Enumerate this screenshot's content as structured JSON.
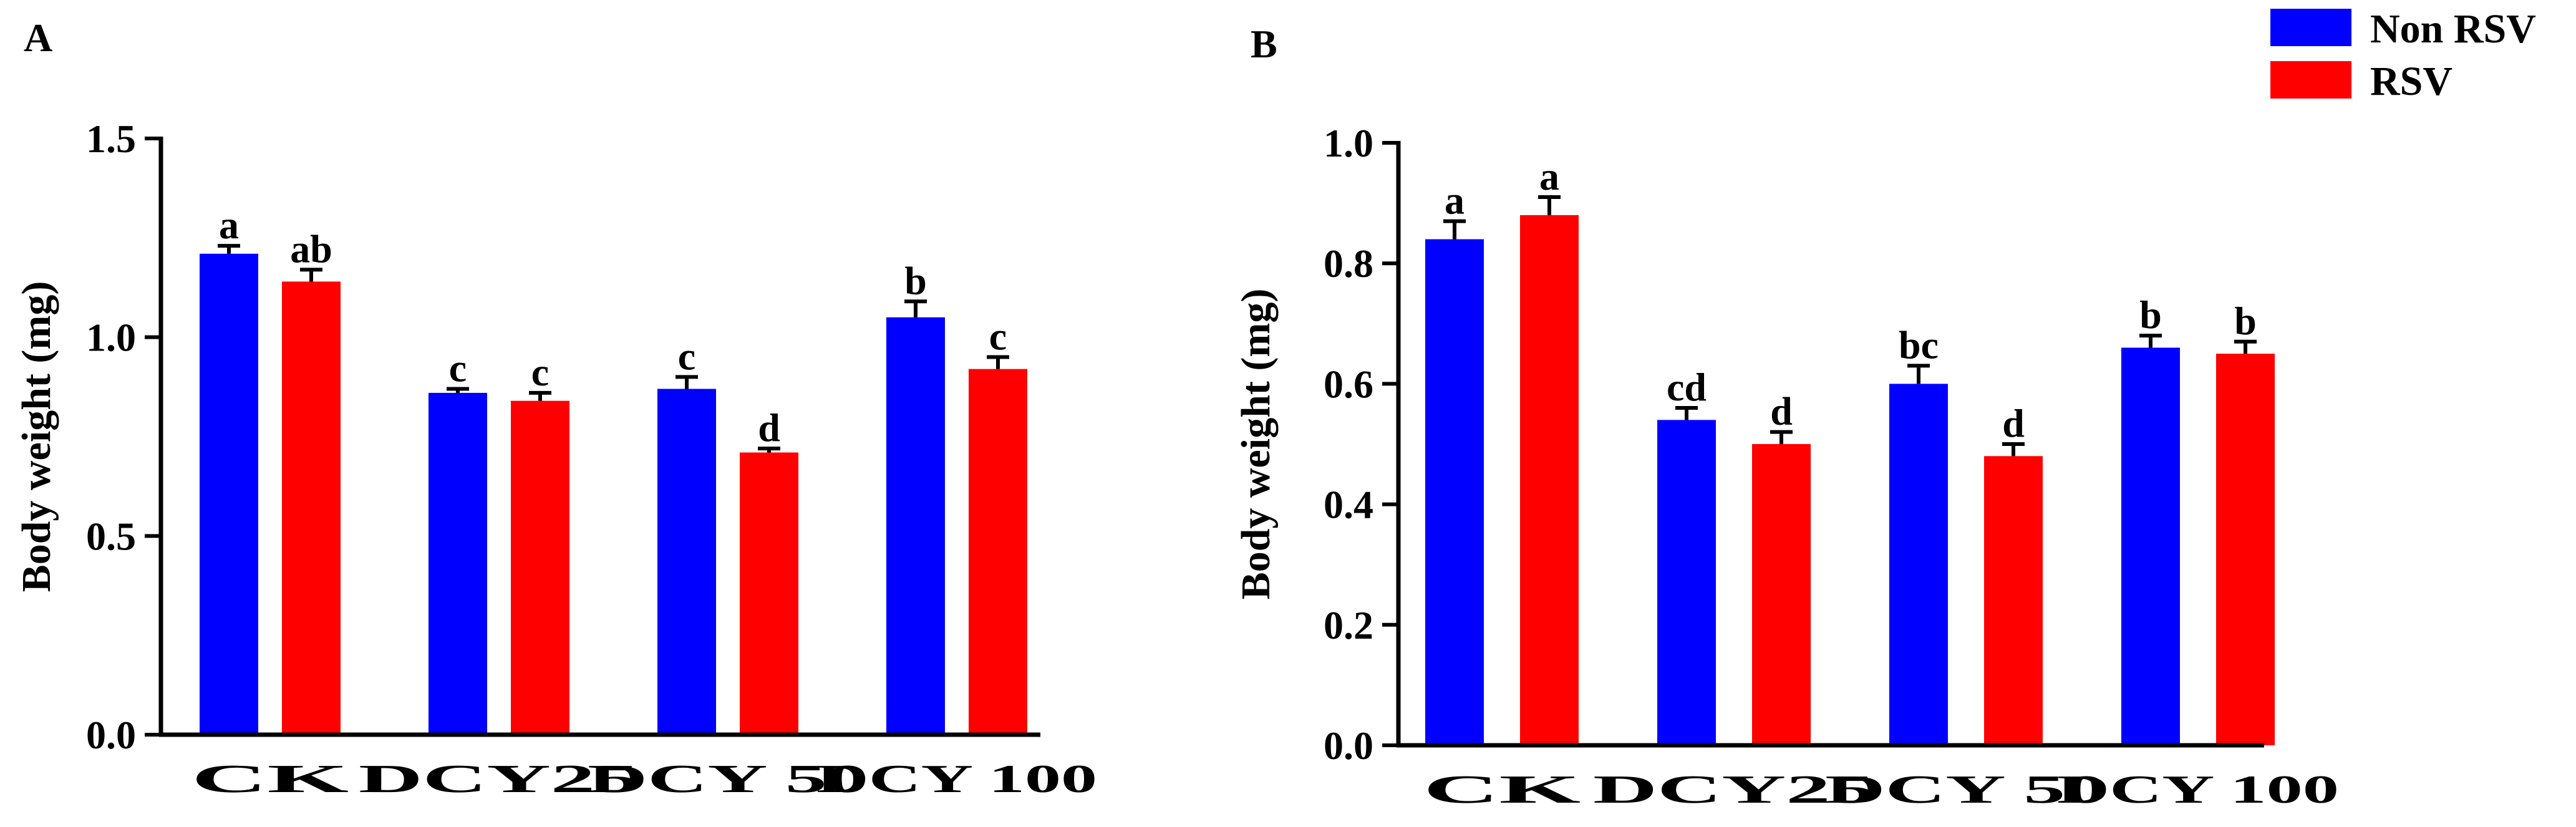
{
  "colors": {
    "non_rsv": "#0000ff",
    "rsv": "#ff0000",
    "axis": "#000000"
  },
  "legend": {
    "position": "top-right",
    "items": [
      {
        "label": "Non RSV",
        "color": "#0000ff"
      },
      {
        "label": "RSV",
        "color": "#ff0000"
      }
    ]
  },
  "chart_data": [
    {
      "panel": "A",
      "type": "bar",
      "ylabel": "Body weight (mg)",
      "ylim": [
        0,
        1.5
      ],
      "yticks": [
        0.0,
        0.5,
        1.0,
        1.5
      ],
      "ytick_labels": [
        "0.0",
        "0.5",
        "1.0",
        "1.5"
      ],
      "categories": [
        "CK",
        "DCY25",
        "DCY 50",
        "DCY 100"
      ],
      "series": [
        {
          "name": "Non RSV",
          "values": [
            1.21,
            0.86,
            0.87,
            1.05
          ],
          "errors": [
            0.02,
            0.01,
            0.03,
            0.04
          ],
          "letters": [
            "a",
            "c",
            "c",
            "b"
          ]
        },
        {
          "name": "RSV",
          "values": [
            1.14,
            0.84,
            0.71,
            0.92
          ],
          "errors": [
            0.03,
            0.02,
            0.01,
            0.03
          ],
          "letters": [
            "ab",
            "c",
            "d",
            "c"
          ]
        }
      ],
      "grid": false
    },
    {
      "panel": "B",
      "type": "bar",
      "ylabel": "Body weight (mg)",
      "ylim": [
        0,
        1.0
      ],
      "yticks": [
        0.0,
        0.2,
        0.4,
        0.6,
        0.8,
        1.0
      ],
      "ytick_labels": [
        "0.0",
        "0.2",
        "0.4",
        "0.6",
        "0.8",
        "1.0"
      ],
      "categories": [
        "CK",
        "DCY25",
        "DCY 50",
        "DCY 100"
      ],
      "series": [
        {
          "name": "Non RSV",
          "values": [
            0.84,
            0.54,
            0.6,
            0.66
          ],
          "errors": [
            0.03,
            0.02,
            0.03,
            0.02
          ],
          "letters": [
            "a",
            "cd",
            "bc",
            "b"
          ]
        },
        {
          "name": "RSV",
          "values": [
            0.88,
            0.5,
            0.48,
            0.65
          ],
          "errors": [
            0.03,
            0.02,
            0.02,
            0.02
          ],
          "letters": [
            "a",
            "d",
            "d",
            "b"
          ]
        }
      ],
      "grid": false
    }
  ]
}
